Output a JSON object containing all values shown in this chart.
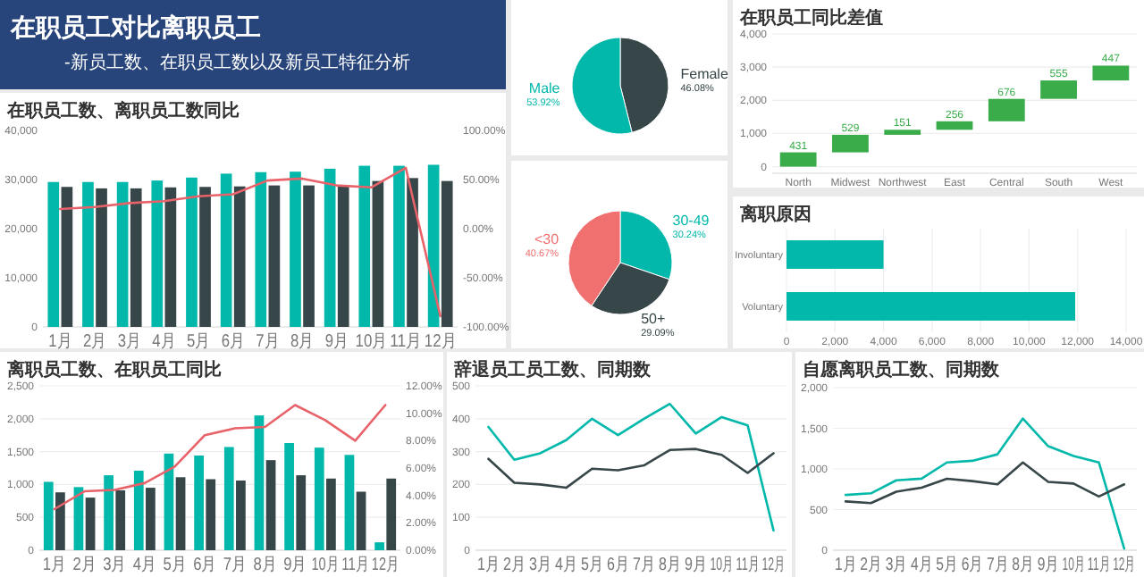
{
  "chart_data": [
    {
      "type": "other",
      "title": "在职员工对比离职员工",
      "subtitle": "-新员工数、在职员工数以及新员工特征分析"
    },
    {
      "type": "bar",
      "title": "在职员工数、离职员工数同比",
      "categories": [
        "1月",
        "2月",
        "3月",
        "4月",
        "5月",
        "6月",
        "7月",
        "8月",
        "9月",
        "10月",
        "11月",
        "12月"
      ],
      "ylim": [
        0,
        40000
      ],
      "yticks": [
        0,
        {
          "value": 10000,
          "label": "10,000"
        },
        {
          "value": 20000,
          "label": "20,000"
        },
        {
          "value": 30000,
          "label": "30,000"
        },
        {
          "value": 40000,
          "label": "40,000"
        }
      ],
      "y2lim": [
        -100,
        100
      ],
      "y2ticks": [
        {
          "value": -100,
          "label": "-100.00%"
        },
        {
          "value": -50,
          "label": "-50.00%"
        },
        {
          "value": 0,
          "label": "0.00%"
        },
        {
          "value": 50,
          "label": "50.00%"
        },
        {
          "value": 100,
          "label": "100.00%"
        }
      ],
      "grid": false,
      "series": [
        {
          "color": "#01b8aa",
          "values": [
            29500,
            29500,
            29500,
            29800,
            30400,
            31200,
            31500,
            31600,
            32200,
            32800,
            32800,
            33000
          ]
        },
        {
          "color": "#374649",
          "values": [
            28500,
            28200,
            28200,
            28400,
            28500,
            28600,
            28800,
            28800,
            28800,
            29700,
            30300,
            29700
          ]
        },
        {
          "type": "line",
          "axis": "y2",
          "color": "#e8626a",
          "values": [
            20,
            22,
            26,
            28,
            33,
            35,
            49,
            51,
            44,
            42,
            62,
            -89
          ]
        }
      ]
    },
    {
      "type": "pie",
      "categories": [
        "Female",
        "Male"
      ],
      "values": [
        46.08,
        53.92
      ],
      "colors": [
        "#374649",
        "#01b8aa"
      ],
      "value_labels": [
        "46.08%",
        "53.92%"
      ]
    },
    {
      "type": "pie",
      "categories": [
        "30-49",
        "50+",
        "<30"
      ],
      "values": [
        30.24,
        29.09,
        40.67
      ],
      "colors": [
        "#01b8aa",
        "#374649",
        "#f07070"
      ],
      "value_labels": [
        "30.24%",
        "29.09%",
        "40.67%"
      ]
    },
    {
      "type": "bar",
      "title": "在职员工同比差值",
      "categories": [
        "North",
        "Midwest",
        "Northwest",
        "East",
        "Central",
        "South",
        "West"
      ],
      "values": [
        431,
        529,
        151,
        256,
        676,
        555,
        447
      ],
      "base": [
        0,
        431,
        960,
        1111,
        1367,
        2043,
        2598
      ],
      "color": "#3aad4a",
      "data_labels": true,
      "ylim": [
        -200,
        4000
      ],
      "yticks": [
        0,
        {
          "value": 1000,
          "label": "1,000"
        },
        {
          "value": 2000,
          "label": "2,000"
        },
        {
          "value": 3000,
          "label": "3,000"
        },
        {
          "value": 4000,
          "label": "4,000"
        }
      ],
      "grid": "y"
    },
    {
      "type": "bar",
      "title": "离职原因",
      "orientation": "horizontal",
      "categories": [
        "Involuntary",
        "Voluntary"
      ],
      "values": [
        4000,
        11900
      ],
      "color": "#01b8aa",
      "xlim": [
        0,
        14000
      ],
      "xticks": [
        0,
        {
          "value": 2000,
          "label": "2,000"
        },
        {
          "value": 4000,
          "label": "4,000"
        },
        {
          "value": 6000,
          "label": "6,000"
        },
        {
          "value": 8000,
          "label": "8,000"
        },
        {
          "value": 10000,
          "label": "10,000"
        },
        {
          "value": 12000,
          "label": "12,000"
        },
        {
          "value": 14000,
          "label": "14,000"
        }
      ],
      "grid": "x"
    },
    {
      "type": "bar",
      "title": "离职员工数、在职员工同比",
      "categories": [
        "1月",
        "2月",
        "3月",
        "4月",
        "5月",
        "6月",
        "7月",
        "8月",
        "9月",
        "10月",
        "11月",
        "12月"
      ],
      "ylim": [
        0,
        2500
      ],
      "yticks": [
        0,
        500,
        {
          "value": 1000,
          "label": "1,000"
        },
        {
          "value": 1500,
          "label": "1,500"
        },
        {
          "value": 2000,
          "label": "2,000"
        },
        {
          "value": 2500,
          "label": "2,500"
        }
      ],
      "y2lim": [
        0,
        12
      ],
      "y2ticks": [
        {
          "value": 0,
          "label": "0.00%"
        },
        {
          "value": 2,
          "label": "2.00%"
        },
        {
          "value": 4,
          "label": "4.00%"
        },
        {
          "value": 6,
          "label": "6.00%"
        },
        {
          "value": 8,
          "label": "8.00%"
        },
        {
          "value": 10,
          "label": "10.00%"
        },
        {
          "value": 12,
          "label": "12.00%"
        }
      ],
      "grid": "y",
      "series": [
        {
          "color": "#01b8aa",
          "values": [
            1040,
            960,
            1140,
            1210,
            1470,
            1440,
            1570,
            2050,
            1630,
            1560,
            1450,
            120
          ]
        },
        {
          "color": "#374649",
          "values": [
            880,
            800,
            910,
            950,
            1110,
            1080,
            1060,
            1370,
            1140,
            1090,
            890,
            1090
          ]
        },
        {
          "type": "line",
          "axis": "y2",
          "color": "#e8626a",
          "values": [
            3.0,
            4.3,
            4.4,
            4.9,
            6.1,
            8.4,
            8.9,
            9.0,
            10.6,
            9.5,
            8.0,
            10.6
          ]
        }
      ]
    },
    {
      "type": "line",
      "title": "辞退员工员工数、同期数",
      "categories": [
        "1月",
        "2月",
        "3月",
        "4月",
        "5月",
        "6月",
        "7月",
        "8月",
        "9月",
        "10月",
        "11月",
        "12月"
      ],
      "ylim": [
        0,
        500
      ],
      "yticks": [
        0,
        100,
        200,
        300,
        400,
        500
      ],
      "grid": "y",
      "series": [
        {
          "color": "#01b8aa",
          "values": [
            375,
            275,
            295,
            335,
            400,
            350,
            400,
            445,
            355,
            405,
            380,
            60
          ]
        },
        {
          "color": "#374649",
          "values": [
            278,
            205,
            200,
            190,
            248,
            243,
            258,
            305,
            308,
            290,
            235,
            295
          ]
        }
      ]
    },
    {
      "type": "line",
      "title": "自愿离职员工数、同期数",
      "categories": [
        "1月",
        "2月",
        "3月",
        "4月",
        "5月",
        "6月",
        "7月",
        "8月",
        "9月",
        "10月",
        "11月",
        "12月"
      ],
      "ylim": [
        0,
        2000
      ],
      "yticks": [
        0,
        500,
        {
          "value": 1000,
          "label": "1,000"
        },
        {
          "value": 1500,
          "label": "1,500"
        },
        {
          "value": 2000,
          "label": "2,000"
        }
      ],
      "grid": "y",
      "series": [
        {
          "color": "#01b8aa",
          "values": [
            680,
            700,
            860,
            880,
            1080,
            1100,
            1180,
            1620,
            1280,
            1160,
            1080,
            20
          ]
        },
        {
          "color": "#374649",
          "values": [
            600,
            580,
            720,
            770,
            880,
            850,
            810,
            1080,
            840,
            820,
            660,
            810
          ]
        }
      ]
    }
  ]
}
